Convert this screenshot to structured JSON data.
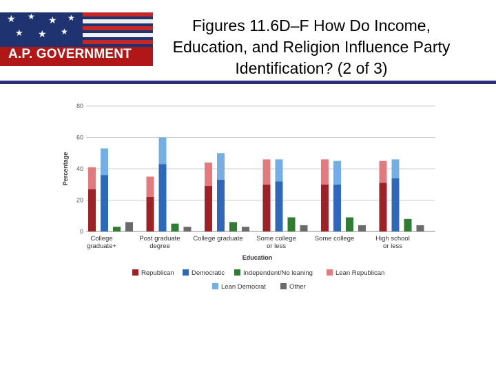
{
  "header": {
    "logo_text": "A.P. GOVERNMENT",
    "title_line1": "Figures 11.6D–F How Do Income,",
    "title_line2": "Education, and Religion Influence Party",
    "title_line3": "Identification? (2 of 3)"
  },
  "chart_data": {
    "type": "bar",
    "stacked_pairs": true,
    "xlabel": "Education",
    "ylabel": "Percentage",
    "ylim": [
      0,
      80
    ],
    "yticks": [
      0,
      20,
      40,
      60,
      80
    ],
    "grid": true,
    "legend_position": "bottom",
    "categories": [
      [
        "College",
        "graduate+"
      ],
      [
        "Post graduate",
        "degree"
      ],
      [
        "College graduate"
      ],
      [
        "Some college",
        "or less"
      ],
      [
        "Some college"
      ],
      [
        "High school",
        "or less"
      ]
    ],
    "series": [
      {
        "name": "Republican",
        "color": "#9b2226",
        "values": [
          27,
          22,
          29,
          30,
          30,
          31
        ]
      },
      {
        "name": "Democratic",
        "color": "#2f68b8",
        "values": [
          36,
          43,
          33,
          32,
          30,
          34
        ]
      },
      {
        "name": "Independent/No leaning",
        "color": "#2e7d32",
        "values": [
          3,
          5,
          6,
          9,
          9,
          8
        ]
      },
      {
        "name": "Lean Republican",
        "color": "#e07b7f",
        "values": [
          14,
          13,
          15,
          16,
          16,
          14
        ]
      },
      {
        "name": "Lean Democrat",
        "color": "#75aee3",
        "values": [
          17,
          17,
          17,
          14,
          15,
          12
        ]
      },
      {
        "name": "Other",
        "color": "#6b6b6b",
        "values": [
          6,
          3,
          3,
          4,
          4,
          4
        ]
      }
    ]
  }
}
